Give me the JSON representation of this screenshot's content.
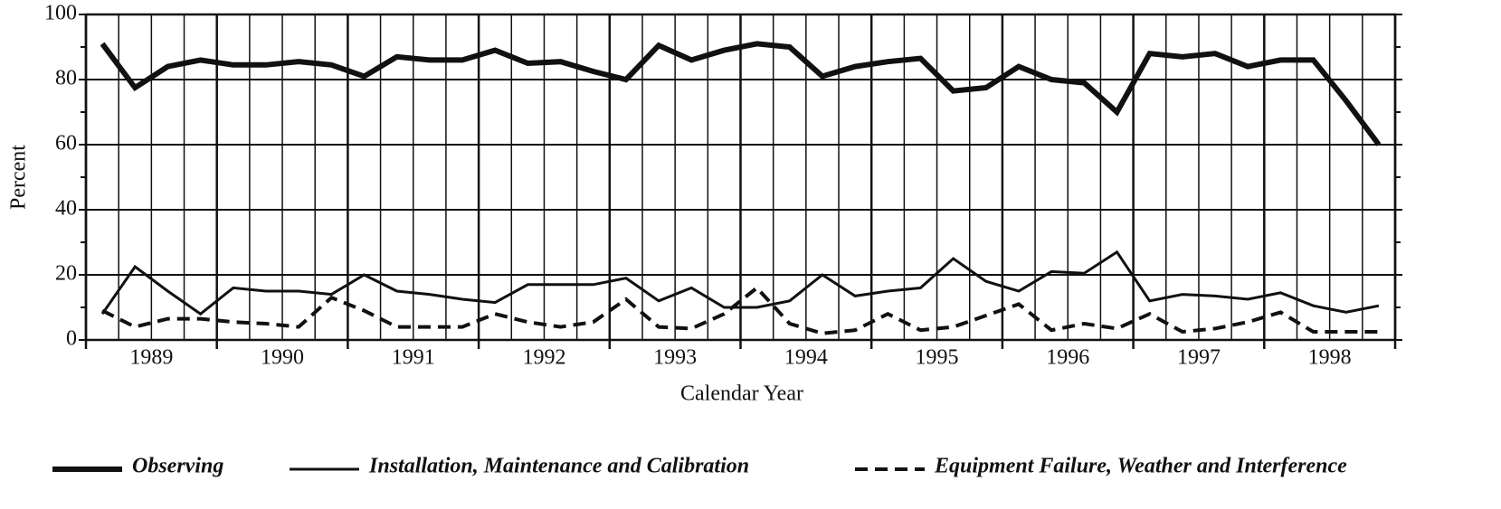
{
  "chart_data": {
    "type": "line",
    "x_label": "Calendar Year",
    "y_label": "Percent",
    "categories": [
      "1989",
      "1990",
      "1991",
      "1992",
      "1993",
      "1994",
      "1995",
      "1996",
      "1997",
      "1998"
    ],
    "ylim": [
      0,
      100
    ],
    "yticks": [
      0,
      20,
      40,
      60,
      80,
      100
    ],
    "minor_yticks": [
      10,
      30,
      50,
      70,
      90
    ],
    "grid": true,
    "series": [
      {
        "name": "Observing",
        "color": "#111111",
        "style": "thick",
        "values": [
          [
            91,
            77.5,
            84,
            86
          ],
          [
            84.5,
            84.5,
            85.5,
            84.5
          ],
          [
            81,
            87,
            86,
            86
          ],
          [
            89,
            85,
            85.5,
            82.5
          ],
          [
            80,
            90.5,
            86,
            89
          ],
          [
            91,
            90,
            81,
            84
          ],
          [
            85.5,
            86.5,
            76.5,
            77.5
          ],
          [
            84,
            80,
            79,
            70
          ],
          [
            88,
            87,
            88,
            84
          ],
          [
            86,
            86,
            73.5,
            60
          ]
        ]
      },
      {
        "name": "Installation, Maintenance and Calibration",
        "color": "#111111",
        "style": "thin",
        "values": [
          [
            8,
            22.5,
            15,
            8
          ],
          [
            16,
            15,
            15,
            14
          ],
          [
            20,
            15,
            14,
            12.5
          ],
          [
            11.5,
            17,
            17,
            17
          ],
          [
            19,
            12,
            16,
            10
          ],
          [
            10,
            12,
            20,
            13.5
          ],
          [
            15,
            16,
            25,
            18
          ],
          [
            15,
            21,
            20.5,
            27
          ],
          [
            12,
            14,
            13.5,
            12.5
          ],
          [
            14.5,
            10.5,
            8.5,
            10.5
          ]
        ]
      },
      {
        "name": "Equipment Failure, Weather and Interference",
        "color": "#111111",
        "style": "dashed",
        "values": [
          [
            9,
            4,
            6.5,
            6.5
          ],
          [
            5.5,
            5,
            4,
            13
          ],
          [
            9,
            4,
            4,
            4
          ],
          [
            8,
            5.5,
            4,
            5.5
          ],
          [
            12.5,
            4,
            3.5,
            8
          ],
          [
            16,
            5,
            2,
            3
          ],
          [
            8,
            3,
            4,
            7.5
          ],
          [
            11,
            3,
            5,
            3.5
          ],
          [
            8,
            2.5,
            3.5,
            5.5
          ],
          [
            8.5,
            2.5,
            2.5,
            2.5
          ]
        ]
      }
    ]
  }
}
